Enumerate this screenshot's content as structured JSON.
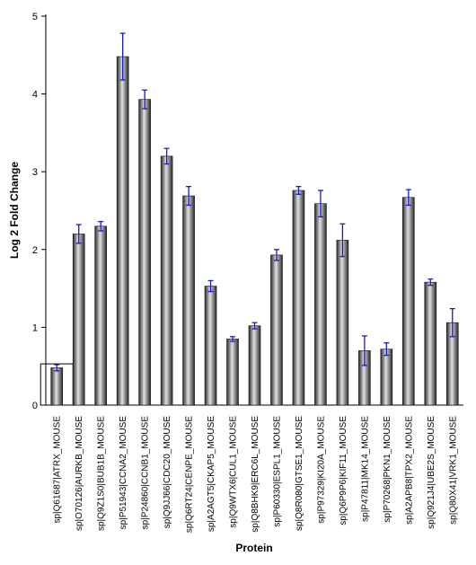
{
  "chart_data": {
    "type": "bar",
    "xlabel": "Protein",
    "ylabel": "Log 2 Fold Change",
    "ylim": [
      0,
      5
    ],
    "yticks": [
      "0",
      "1",
      "2",
      "3",
      "4",
      "5"
    ],
    "grid": false,
    "legend": "none",
    "categories": [
      "sp|Q61687|ATRX_MOUSE",
      "sp|O70126|AURKB_MOUSE",
      "sp|Q9Z1S0|BUB1B_MOUSE",
      "sp|P51943|CCNA2_MOUSE",
      "sp|P24860|CCNB1_MOUSE",
      "sp|Q9JJ66|CDC20_MOUSE",
      "sp|Q6RT24|CENPE_MOUSE",
      "sp|A2AGT5|CKAP5_MOUSE",
      "sp|Q9WTX6|CUL1_MOUSE",
      "sp|Q8BHK9|ERC6L_MOUSE",
      "sp|P60330|ESPL1_MOUSE",
      "sp|Q8R080|GTSE1_MOUSE",
      "sp|P97329|KI20A_MOUSE",
      "sp|Q6P9P6|KIF11_MOUSE",
      "sp|P47811|MK14_MOUSE",
      "sp|P70268|PKN1_MOUSE",
      "sp|A2APB8|TPX2_MOUSE",
      "sp|Q921J4|UBE2S_MOUSE",
      "sp|Q80X41|VRK1_MOUSE"
    ],
    "values": [
      0.48,
      2.2,
      2.3,
      4.48,
      3.93,
      3.2,
      2.69,
      1.53,
      0.85,
      1.02,
      1.93,
      2.76,
      2.59,
      2.12,
      0.7,
      0.72,
      2.67,
      1.58,
      1.06
    ],
    "errors": [
      0.04,
      0.12,
      0.06,
      0.3,
      0.12,
      0.1,
      0.12,
      0.07,
      0.03,
      0.04,
      0.07,
      0.05,
      0.17,
      0.21,
      0.19,
      0.08,
      0.1,
      0.04,
      0.18
    ],
    "highlighted_category": "sp|Q61687|ATRX_MOUSE",
    "colors": {
      "bar_dark": "#2a2a2a",
      "bar_light": "#e0e0e0",
      "error_bar": "#1a1ad0",
      "axis": "#000000",
      "highlight_box": "#000000"
    }
  }
}
